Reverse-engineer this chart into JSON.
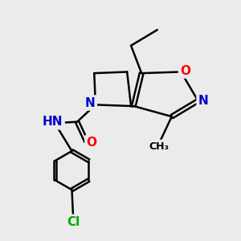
{
  "bg_color": "#ebebeb",
  "bond_color": "#000000",
  "bond_width": 1.8,
  "atom_colors": {
    "N": "#0000cd",
    "O": "#ff0000",
    "Cl": "#00aa00",
    "C": "#000000",
    "H": "#666666"
  },
  "font_size": 10,
  "fig_size": [
    3.0,
    3.0
  ],
  "dpi": 100,
  "xlim": [
    0,
    10
  ],
  "ylim": [
    0,
    10
  ]
}
